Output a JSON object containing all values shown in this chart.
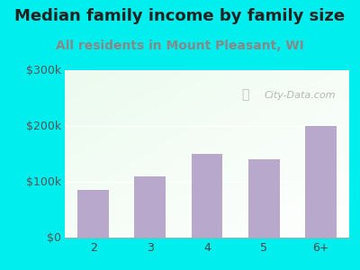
{
  "title": "Median family income by family size",
  "subtitle": "All residents in Mount Pleasant, WI",
  "categories": [
    "2",
    "3",
    "4",
    "5",
    "6+"
  ],
  "values": [
    85000,
    110000,
    150000,
    140000,
    200000
  ],
  "bar_color": "#b8a8cc",
  "ylim": [
    0,
    300000
  ],
  "yticks": [
    0,
    100000,
    200000,
    300000
  ],
  "ytick_labels": [
    "$0",
    "$100k",
    "$200k",
    "$300k"
  ],
  "title_fontsize": 13,
  "subtitle_fontsize": 10,
  "tick_fontsize": 9,
  "outer_bg_color": "#00eeee",
  "subtitle_color": "#888888",
  "title_color": "#222222",
  "watermark_text": "City-Data.com",
  "watermark_color": "#aaaaaa"
}
